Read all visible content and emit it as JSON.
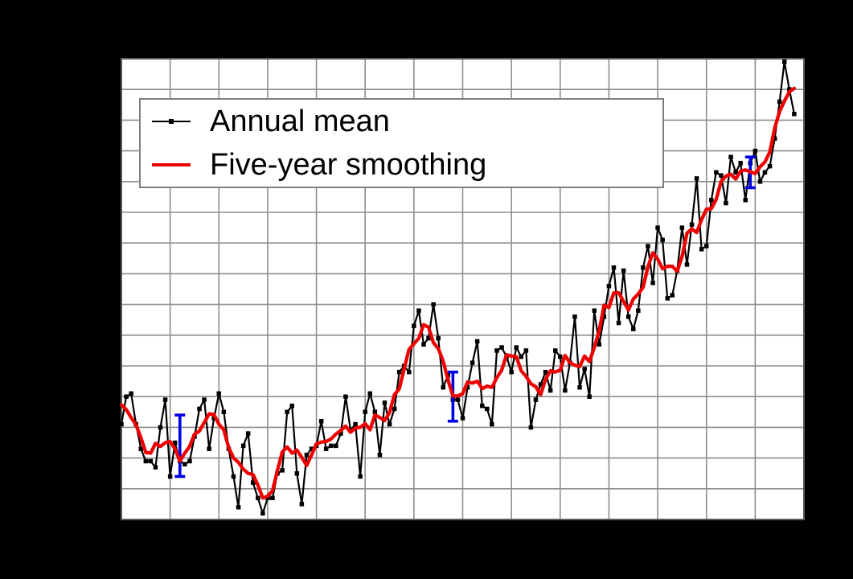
{
  "window": {
    "background_color": "#000000",
    "plot_background_color": "#ffffff",
    "gridline_color": "#8e8e8e",
    "frame_color": "#5a5a5a"
  },
  "legend": {
    "position": "top-left",
    "border_color": "#7f7f7f",
    "background": "#ffffff"
  },
  "chart_data": {
    "type": "line",
    "grid": true,
    "legend_position": "top-left",
    "x_range": [
      1880,
      2020
    ],
    "x_gridline_step": 10,
    "y_range": [
      -0.5,
      1.0
    ],
    "y_gridline_step": 0.1,
    "series": [
      {
        "name": "Annual mean",
        "color": "#000000",
        "style": "line+square-markers",
        "start_year": 1880,
        "values": [
          -0.19,
          -0.1,
          -0.09,
          -0.19,
          -0.27,
          -0.31,
          -0.31,
          -0.33,
          -0.2,
          -0.11,
          -0.36,
          -0.25,
          -0.31,
          -0.32,
          -0.31,
          -0.23,
          -0.14,
          -0.11,
          -0.27,
          -0.17,
          -0.09,
          -0.15,
          -0.27,
          -0.36,
          -0.46,
          -0.26,
          -0.22,
          -0.38,
          -0.43,
          -0.48,
          -0.43,
          -0.43,
          -0.35,
          -0.34,
          -0.15,
          -0.13,
          -0.35,
          -0.45,
          -0.29,
          -0.27,
          -0.26,
          -0.18,
          -0.27,
          -0.26,
          -0.26,
          -0.22,
          -0.1,
          -0.21,
          -0.19,
          -0.36,
          -0.15,
          -0.09,
          -0.15,
          -0.29,
          -0.12,
          -0.19,
          -0.14,
          -0.02,
          0.0,
          -0.02,
          0.13,
          0.18,
          0.07,
          0.09,
          0.2,
          0.09,
          -0.07,
          -0.03,
          -0.11,
          -0.11,
          -0.17,
          -0.07,
          0.01,
          0.08,
          -0.13,
          -0.14,
          -0.19,
          0.05,
          0.06,
          0.03,
          -0.02,
          0.06,
          0.03,
          0.05,
          -0.2,
          -0.11,
          -0.06,
          -0.02,
          -0.08,
          0.05,
          0.03,
          -0.08,
          0.01,
          0.16,
          -0.07,
          -0.01,
          -0.1,
          0.18,
          0.07,
          0.16,
          0.26,
          0.32,
          0.14,
          0.31,
          0.16,
          0.12,
          0.18,
          0.32,
          0.39,
          0.27,
          0.45,
          0.41,
          0.22,
          0.23,
          0.31,
          0.45,
          0.33,
          0.46,
          0.61,
          0.38,
          0.39,
          0.54,
          0.63,
          0.62,
          0.53,
          0.68,
          0.63,
          0.66,
          0.54,
          0.66,
          0.7,
          0.6,
          0.63,
          0.65,
          0.74,
          0.86,
          0.99,
          0.9,
          0.82
        ]
      },
      {
        "name": "Five-year smoothing",
        "color": "#ee0000",
        "style": "line",
        "derived_from": "centered 5-year moving average of Annual mean"
      }
    ],
    "error_bars": {
      "color": "#0000e6",
      "bars": [
        {
          "year": 1892,
          "center": -0.26,
          "half": 0.1
        },
        {
          "year": 1948,
          "center": -0.1,
          "half": 0.08
        },
        {
          "year": 2009,
          "center": 0.63,
          "half": 0.05
        }
      ]
    }
  }
}
